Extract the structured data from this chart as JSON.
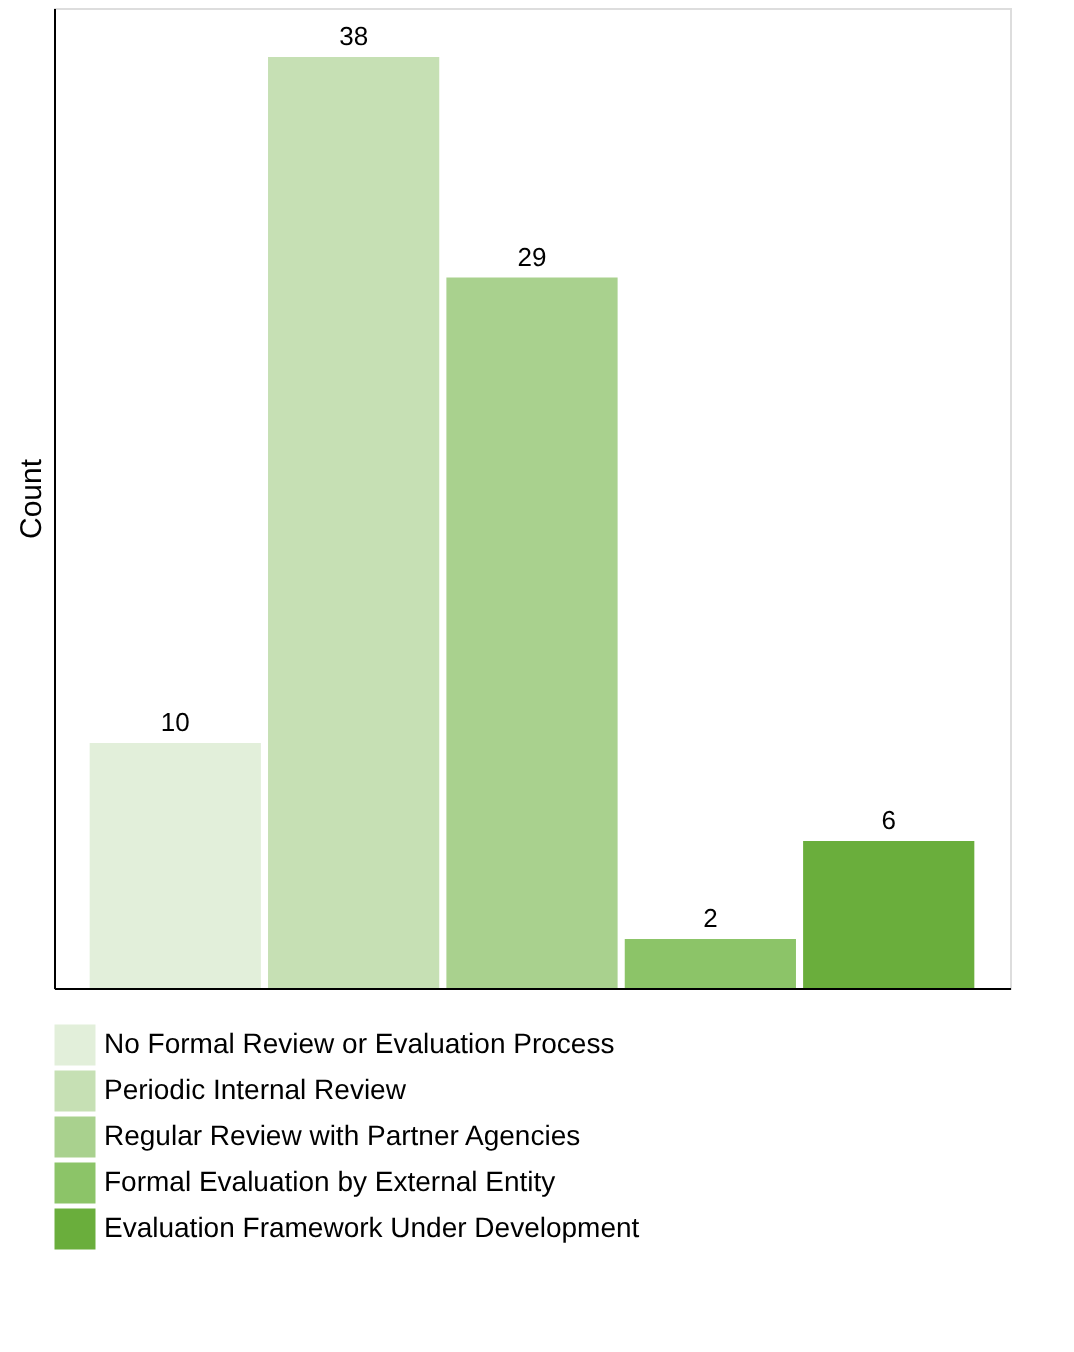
{
  "chart_data": {
    "type": "bar",
    "ylabel": "Count",
    "categories": [
      null,
      null,
      null,
      null,
      null
    ],
    "stacked": true,
    "series": [
      {
        "name": "No Formal Review or Evaluation Process",
        "color": "#e2efda",
        "values": [
          10,
          null,
          null,
          null,
          null
        ]
      },
      {
        "name": "Periodic Internal Review",
        "color": "#c6e0b4",
        "values": [
          null,
          38,
          null,
          null,
          null
        ]
      },
      {
        "name": "Regular Review with Partner Agencies",
        "color": "#a9d18e",
        "values": [
          null,
          null,
          29,
          null,
          null
        ]
      },
      {
        "name": "Formal Evaluation by External Entity",
        "color": "#8cc468",
        "values": [
          null,
          null,
          null,
          2,
          null
        ]
      },
      {
        "name": "Evaluation Framework Under Development",
        "color": "#6aae3c",
        "values": [
          null,
          null,
          null,
          null,
          6
        ]
      }
    ],
    "ylim": [
      0,
      40
    ],
    "data_labels": true,
    "legend": "bottom",
    "grid": false
  }
}
